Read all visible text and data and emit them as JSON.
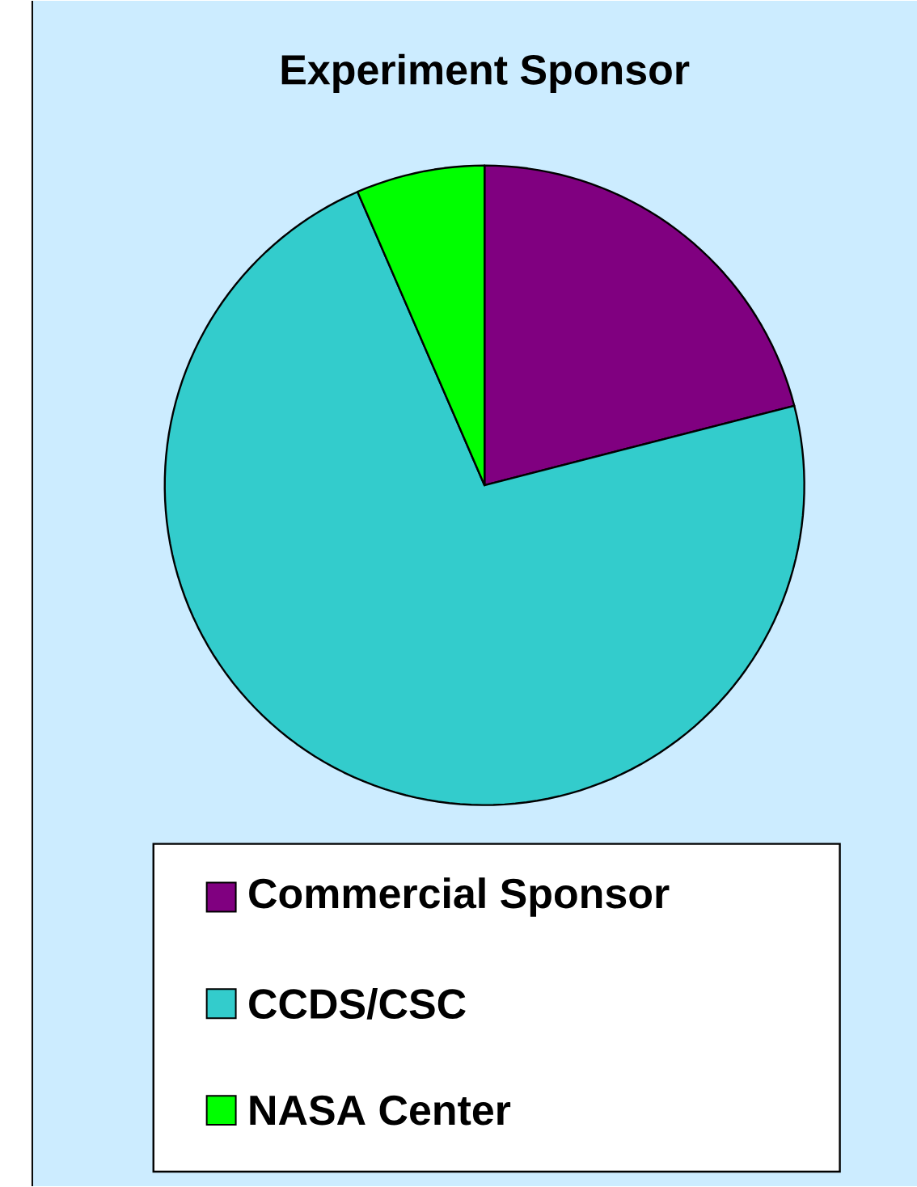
{
  "chart_data": {
    "type": "pie",
    "title": "Experiment Sponsor",
    "categories": [
      "Commercial Sponsor",
      "CCDS/CSC",
      "NASA Center"
    ],
    "values": [
      21,
      72.5,
      6.5
    ],
    "colors": [
      "#800080",
      "#33cccc",
      "#00ff00"
    ],
    "legend": "bottom"
  }
}
